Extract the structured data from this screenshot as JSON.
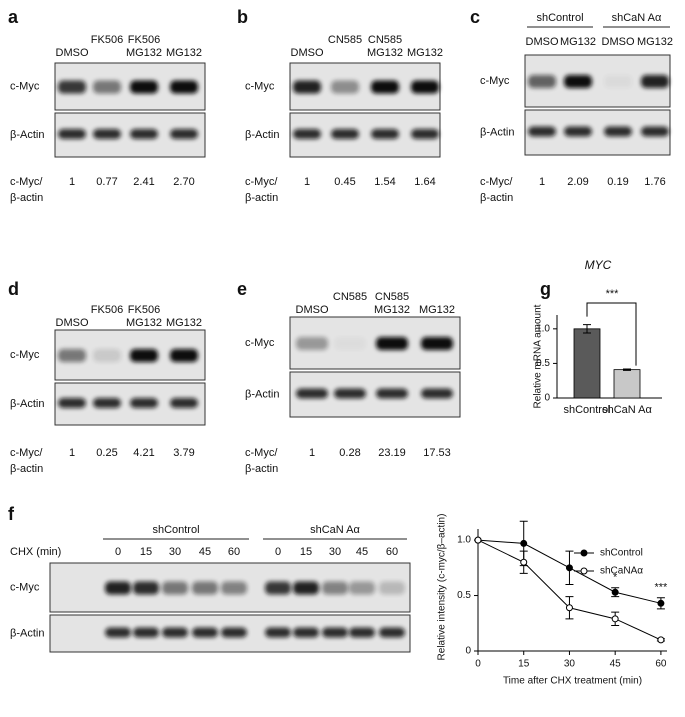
{
  "blots": [
    {
      "letter": "a",
      "lanes": [
        [
          "DMSO"
        ],
        [
          "FK506"
        ],
        [
          "FK506",
          "MG132"
        ],
        [
          "MG132"
        ]
      ],
      "rows": [
        "c-Myc",
        "β-Actin"
      ],
      "ratio_label": [
        "c-Myc/",
        "β-actin"
      ],
      "ratios": [
        "1",
        "0.77",
        "2.41",
        "2.70"
      ]
    },
    {
      "letter": "b",
      "lanes": [
        [
          "DMSO"
        ],
        [
          "CN585"
        ],
        [
          "CN585",
          "MG132"
        ],
        [
          "MG132"
        ]
      ],
      "rows": [
        "c-Myc",
        "β-Actin"
      ],
      "ratio_label": [
        "c-Myc/",
        "β-actin"
      ],
      "ratios": [
        "1",
        "0.45",
        "1.54",
        "1.64"
      ]
    },
    {
      "letter": "c",
      "groups": [
        "shControl",
        "shCaN Aα"
      ],
      "lanes": [
        [
          "DMSO"
        ],
        [
          "MG132"
        ],
        [
          "DMSO"
        ],
        [
          "MG132"
        ]
      ],
      "rows": [
        "c-Myc",
        "β-Actin"
      ],
      "ratio_label": [
        "c-Myc/",
        "β-actin"
      ],
      "ratios": [
        "1",
        "2.09",
        "0.19",
        "1.76"
      ]
    },
    {
      "letter": "d",
      "lanes": [
        [
          "DMSO"
        ],
        [
          "FK506"
        ],
        [
          "FK506",
          "MG132"
        ],
        [
          "MG132"
        ]
      ],
      "rows": [
        "c-Myc",
        "β-Actin"
      ],
      "ratio_label": [
        "c-Myc/",
        "β-actin"
      ],
      "ratios": [
        "1",
        "0.25",
        "4.21",
        "3.79"
      ]
    },
    {
      "letter": "e",
      "lanes": [
        [
          "DMSO"
        ],
        [
          "CN585"
        ],
        [
          "CN585",
          "MG132"
        ],
        [
          "MG132"
        ]
      ],
      "rows": [
        "c-Myc",
        "β-Actin"
      ],
      "ratio_label": [
        "c-Myc/",
        "β-actin"
      ],
      "ratios": [
        "1",
        "0.28",
        "23.19",
        "17.53"
      ]
    },
    {
      "letter": "f",
      "groups": [
        "shControl",
        "shCaN Aα"
      ],
      "lane_title": "CHX (min)",
      "lanes": [
        [
          "0"
        ],
        [
          "15"
        ],
        [
          "30"
        ],
        [
          "45"
        ],
        [
          "60"
        ],
        [
          "0"
        ],
        [
          "15"
        ],
        [
          "30"
        ],
        [
          "45"
        ],
        [
          "60"
        ]
      ],
      "rows": [
        "c-Myc",
        "β-Actin"
      ]
    }
  ],
  "chart_data": [
    {
      "type": "bar",
      "letter": "g",
      "title": "MYC",
      "y_label": "Relative mRNA amount",
      "categories": [
        "shControl",
        "shCaN Aα"
      ],
      "values": [
        1.0,
        0.41
      ],
      "errors": [
        0.06,
        0.01
      ],
      "colors": [
        "#5a5a5a",
        "#c8c8c8"
      ],
      "ylim": [
        0,
        1.2
      ],
      "yticks": [
        0,
        0.5,
        {
          "value": 1,
          "label": "1.0"
        }
      ],
      "annotation": "***"
    },
    {
      "type": "line",
      "y_label": "Relative intensity (c-myc/β–actin)",
      "x_label": "Time after CHX treatment (min)",
      "x": [
        0,
        15,
        30,
        45,
        60
      ],
      "xlim": [
        0,
        62
      ],
      "xticks": [
        0,
        15,
        30,
        45,
        60
      ],
      "ylim": [
        0,
        1.1
      ],
      "yticks": [
        0,
        0.5,
        {
          "value": 1,
          "label": "1.0"
        }
      ],
      "series": [
        {
          "name": "shControl",
          "color": "#000000",
          "marker": "filled",
          "values": [
            1,
            0.97,
            0.75,
            0.53,
            0.43
          ],
          "errors": [
            0,
            0.2,
            0.15,
            0.04,
            0.05
          ]
        },
        {
          "name": "shCaNAα",
          "color": "#000000",
          "marker": "open",
          "values": [
            1,
            0.8,
            0.39,
            0.29,
            0.1
          ],
          "errors": [
            0,
            0.1,
            0.1,
            0.06,
            0.01
          ]
        }
      ],
      "annotations": [
        {
          "text": "*",
          "x": 45
        },
        {
          "text": "***",
          "x": 60
        }
      ],
      "legend": "upper right"
    }
  ]
}
